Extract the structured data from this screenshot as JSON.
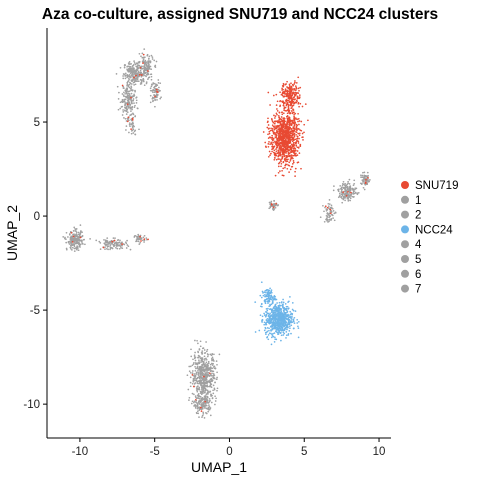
{
  "chart_data": {
    "type": "scatter",
    "title": "Aza co-culture, assigned SNU719 and NCC24 clusters",
    "xlabel": "UMAP_1",
    "ylabel": "UMAP_2",
    "xlim": [
      -12.2,
      10.8
    ],
    "ylim": [
      -11.8,
      10.0
    ],
    "xticks": [
      -10,
      -5,
      0,
      5,
      10
    ],
    "yticks": [
      -10,
      -5,
      0,
      5
    ],
    "grid": false,
    "legend_position": "right",
    "series": [
      {
        "name": "SNU719",
        "color": "#E84A33",
        "clusters": [
          {
            "center": [
              3.7,
              4.2
            ],
            "spread": [
              0.85,
              1.35
            ],
            "count": 950
          },
          {
            "center": [
              4.1,
              6.4
            ],
            "spread": [
              0.6,
              0.6
            ],
            "count": 220
          }
        ]
      },
      {
        "name": "1",
        "color": "#A0A0A0",
        "clusters": [
          {
            "center": [
              -6.3,
              7.6
            ],
            "spread": [
              0.7,
              0.55
            ],
            "count": 220
          },
          {
            "center": [
              -6.8,
              6.2
            ],
            "spread": [
              0.45,
              0.75
            ],
            "count": 180
          },
          {
            "center": [
              -5.6,
              7.9
            ],
            "spread": [
              0.45,
              0.6
            ],
            "count": 120
          }
        ]
      },
      {
        "name": "2",
        "color": "#A0A0A0",
        "clusters": [
          {
            "center": [
              -1.7,
              -8.5
            ],
            "spread": [
              0.75,
              1.2
            ],
            "count": 520
          },
          {
            "center": [
              -1.8,
              -10.0
            ],
            "spread": [
              0.55,
              0.45
            ],
            "count": 140
          }
        ]
      },
      {
        "name": "NCC24",
        "color": "#6CB4E8",
        "clusters": [
          {
            "center": [
              3.3,
              -5.5
            ],
            "spread": [
              0.85,
              0.8
            ],
            "count": 620
          },
          {
            "center": [
              2.6,
              -4.3
            ],
            "spread": [
              0.4,
              0.4
            ],
            "count": 90
          }
        ]
      },
      {
        "name": "4",
        "color": "#A0A0A0",
        "clusters": [
          {
            "center": [
              -10.3,
              -1.3
            ],
            "spread": [
              0.5,
              0.45
            ],
            "count": 200
          },
          {
            "center": [
              -7.8,
              -1.5
            ],
            "spread": [
              0.9,
              0.25
            ],
            "count": 110
          },
          {
            "center": [
              -6.0,
              -1.2
            ],
            "spread": [
              0.4,
              0.18
            ],
            "count": 40
          }
        ]
      },
      {
        "name": "5",
        "color": "#A0A0A0",
        "clusters": [
          {
            "center": [
              7.9,
              1.3
            ],
            "spread": [
              0.55,
              0.45
            ],
            "count": 160
          },
          {
            "center": [
              9.1,
              1.9
            ],
            "spread": [
              0.3,
              0.3
            ],
            "count": 70
          },
          {
            "center": [
              6.7,
              0.2
            ],
            "spread": [
              0.35,
              0.5
            ],
            "count": 60
          }
        ]
      },
      {
        "name": "6",
        "color": "#A0A0A0",
        "clusters": [
          {
            "center": [
              -5.0,
              6.6
            ],
            "spread": [
              0.35,
              0.5
            ],
            "count": 70
          },
          {
            "center": [
              -6.5,
              5.0
            ],
            "spread": [
              0.3,
              0.6
            ],
            "count": 40
          }
        ]
      },
      {
        "name": "7",
        "color": "#A0A0A0",
        "clusters": [
          {
            "center": [
              2.9,
              0.6
            ],
            "spread": [
              0.25,
              0.25
            ],
            "count": 45
          }
        ]
      }
    ]
  }
}
